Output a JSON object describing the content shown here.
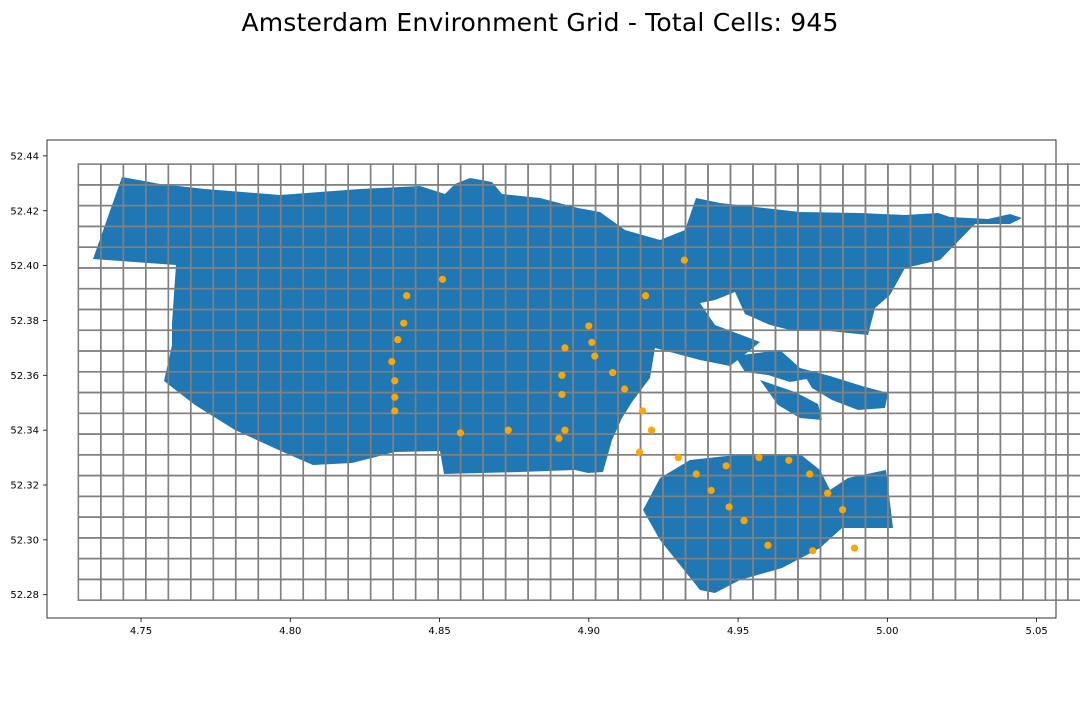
{
  "title": "Amsterdam Environment Grid - Total Cells: 945",
  "colors": {
    "land": "#1f77b4",
    "grid": "#808080",
    "points": "#ffa500",
    "background": "#ffffff"
  },
  "chart_data": {
    "type": "scatter",
    "x_ticks": [
      4.75,
      4.8,
      4.85,
      4.9,
      4.95,
      5.0,
      5.05
    ],
    "y_ticks": [
      52.28,
      52.3,
      52.32,
      52.34,
      52.36,
      52.38,
      52.4,
      52.42,
      52.44
    ],
    "x_tick_labels": [
      "4.75",
      "4.80",
      "4.85",
      "4.90",
      "4.95",
      "5.00",
      "5.05"
    ],
    "y_tick_labels": [
      "52.28",
      "52.30",
      "52.32",
      "52.34",
      "52.36",
      "52.38",
      "52.40",
      "52.42",
      "52.44"
    ],
    "xlim": [
      4.7185,
      5.0565
    ],
    "ylim": [
      52.2715,
      52.4458
    ],
    "grid": {
      "total_cells": 945,
      "columns": 45,
      "rows": 21,
      "x_range": [
        4.729,
        5.068
      ],
      "y_range": [
        52.278,
        52.437
      ]
    },
    "points": [
      {
        "x": 4.932,
        "y": 52.402
      },
      {
        "x": 4.851,
        "y": 52.395
      },
      {
        "x": 4.839,
        "y": 52.389
      },
      {
        "x": 4.919,
        "y": 52.389
      },
      {
        "x": 4.838,
        "y": 52.379
      },
      {
        "x": 4.9,
        "y": 52.378
      },
      {
        "x": 4.836,
        "y": 52.373
      },
      {
        "x": 4.901,
        "y": 52.372
      },
      {
        "x": 4.892,
        "y": 52.37
      },
      {
        "x": 4.902,
        "y": 52.367
      },
      {
        "x": 4.834,
        "y": 52.365
      },
      {
        "x": 4.908,
        "y": 52.361
      },
      {
        "x": 4.891,
        "y": 52.36
      },
      {
        "x": 4.835,
        "y": 52.358
      },
      {
        "x": 4.912,
        "y": 52.355
      },
      {
        "x": 4.891,
        "y": 52.353
      },
      {
        "x": 4.835,
        "y": 52.352
      },
      {
        "x": 4.835,
        "y": 52.347
      },
      {
        "x": 4.918,
        "y": 52.347
      },
      {
        "x": 4.873,
        "y": 52.34
      },
      {
        "x": 4.892,
        "y": 52.34
      },
      {
        "x": 4.921,
        "y": 52.34
      },
      {
        "x": 4.857,
        "y": 52.339
      },
      {
        "x": 4.89,
        "y": 52.337
      },
      {
        "x": 4.917,
        "y": 52.332
      },
      {
        "x": 4.93,
        "y": 52.33
      },
      {
        "x": 4.957,
        "y": 52.33
      },
      {
        "x": 4.967,
        "y": 52.329
      },
      {
        "x": 4.946,
        "y": 52.327
      },
      {
        "x": 4.936,
        "y": 52.324
      },
      {
        "x": 4.974,
        "y": 52.324
      },
      {
        "x": 4.941,
        "y": 52.318
      },
      {
        "x": 4.98,
        "y": 52.317
      },
      {
        "x": 4.947,
        "y": 52.312
      },
      {
        "x": 4.985,
        "y": 52.311
      },
      {
        "x": 4.952,
        "y": 52.307
      },
      {
        "x": 4.96,
        "y": 52.298
      },
      {
        "x": 4.989,
        "y": 52.297
      },
      {
        "x": 4.975,
        "y": 52.296
      }
    ]
  }
}
